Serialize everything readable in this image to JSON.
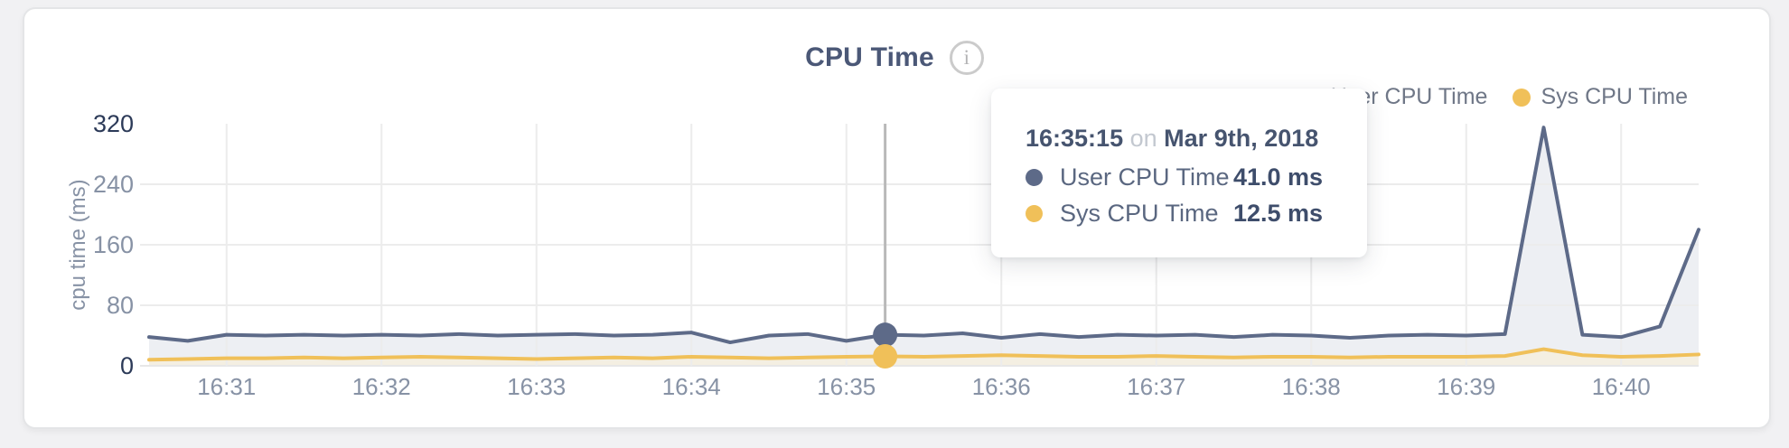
{
  "header": {
    "title": "CPU Time",
    "info_icon_glyph": "i"
  },
  "legend": {
    "items": [
      {
        "label": "User CPU Time",
        "color": "#5d6a88"
      },
      {
        "label": "Sys CPU Time",
        "color": "#f0c059"
      }
    ]
  },
  "tooltip": {
    "time": "16:35:15",
    "conj": "on",
    "date": "Mar 9th, 2018",
    "rows": [
      {
        "label": "User CPU Time",
        "value": "41.0 ms",
        "color": "#5d6a88"
      },
      {
        "label": "Sys CPU Time",
        "value": "12.5 ms",
        "color": "#f0c059"
      }
    ]
  },
  "chart_data": {
    "type": "area",
    "title": "CPU Time",
    "xlabel": "",
    "ylabel": "cpu time (ms)",
    "ylim": [
      0,
      320
    ],
    "yticks": [
      0,
      80,
      160,
      240,
      320
    ],
    "x_ticks": [
      "16:31",
      "16:32",
      "16:33",
      "16:34",
      "16:35",
      "16:36",
      "16:37",
      "16:38",
      "16:39",
      "16:40"
    ],
    "x_start": "16:30:30",
    "x_end": "16:40:30",
    "point_interval_seconds": 15,
    "grid": true,
    "legend_position": "top-right",
    "unit": "ms",
    "series": [
      {
        "name": "User CPU Time",
        "color": "#5d6a88",
        "fill": "#edeff3",
        "values": [
          38,
          33,
          41,
          40,
          41,
          40,
          41,
          40,
          42,
          40,
          41,
          42,
          40,
          41,
          44,
          31,
          40,
          42,
          33,
          41,
          40,
          43,
          37,
          42,
          38,
          41,
          40,
          41,
          38,
          41,
          40,
          37,
          40,
          41,
          40,
          42,
          315,
          41,
          38,
          52,
          180
        ]
      },
      {
        "name": "Sys CPU Time",
        "color": "#f0c059",
        "fill": "#f4efe2",
        "values": [
          8,
          9,
          10,
          10,
          11,
          10,
          11,
          12,
          11,
          10,
          9,
          10,
          11,
          10,
          12,
          11,
          10,
          11,
          12,
          12.5,
          12,
          13,
          14,
          13,
          12,
          12,
          13,
          12,
          11,
          12,
          12,
          11,
          12,
          12,
          12,
          13,
          22,
          14,
          12,
          13,
          15
        ]
      }
    ],
    "hover": {
      "index": 19,
      "time": "16:35:15"
    },
    "colors": {
      "grid": "#ececec",
      "axis_line": "#e7e7e7",
      "crosshair": "#b9b9b9",
      "tick": "#8792a5",
      "tick_strong": "#2c3a58"
    }
  }
}
